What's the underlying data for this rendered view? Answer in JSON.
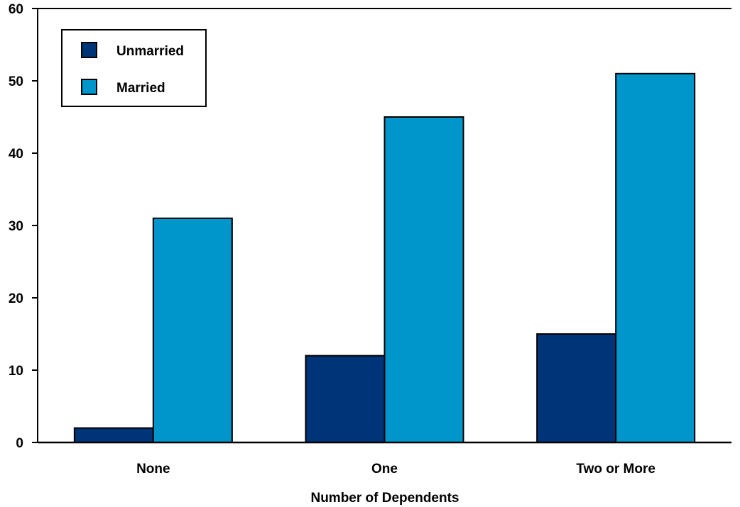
{
  "chart_data": {
    "type": "bar",
    "title": "",
    "xlabel": "Number of Dependents",
    "ylabel": "",
    "categories": [
      "None",
      "One",
      "Two or More"
    ],
    "series": [
      {
        "name": "Unmarried",
        "values": [
          2,
          12,
          15
        ],
        "color": "#003478"
      },
      {
        "name": "Married",
        "values": [
          31,
          45,
          51
        ],
        "color": "#0096cc"
      }
    ],
    "ylim": [
      0,
      60
    ],
    "yticks": [
      0,
      10,
      20,
      30,
      40,
      50,
      60
    ],
    "grid": false,
    "legend": "top-left"
  }
}
